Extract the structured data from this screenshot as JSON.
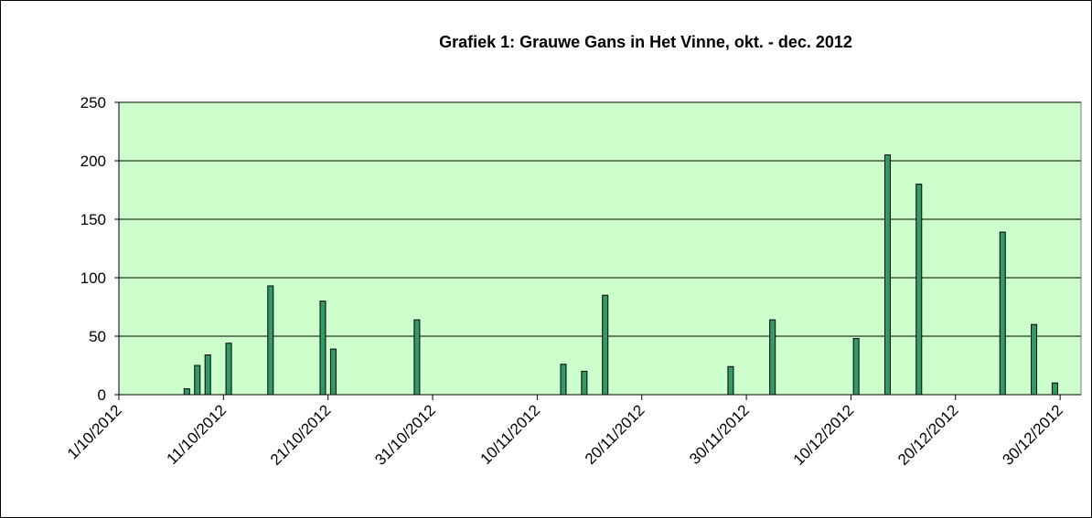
{
  "chart_data": {
    "type": "bar",
    "title": "Grafiek 1: Grauwe Gans in Het Vinne, okt. - dec. 2012",
    "x": [
      "7/10/2012",
      "8/10/2012",
      "9/10/2012",
      "11/10/2012",
      "15/10/2012",
      "20/10/2012",
      "21/10/2012",
      "29/10/2012",
      "12/11/2012",
      "14/11/2012",
      "16/11/2012",
      "28/11/2012",
      "2/12/2012",
      "10/12/2012",
      "13/12/2012",
      "16/12/2012",
      "24/12/2012",
      "27/12/2012",
      "29/12/2012"
    ],
    "values": [
      5,
      25,
      34,
      44,
      93,
      80,
      39,
      64,
      26,
      20,
      85,
      24,
      64,
      48,
      205,
      180,
      139,
      60,
      10
    ],
    "color": "#339966",
    "xlim": [
      "1/10/2012",
      "1/01/2013"
    ],
    "xticks": [
      "1/10/2012",
      "11/10/2012",
      "21/10/2012",
      "31/10/2012",
      "10/11/2012",
      "20/11/2012",
      "30/11/2012",
      "10/12/2012",
      "20/12/2012",
      "30/12/2012"
    ],
    "ylim": [
      0,
      250
    ],
    "yticks": [
      0,
      50,
      100,
      150,
      200,
      250
    ],
    "grid": true
  }
}
